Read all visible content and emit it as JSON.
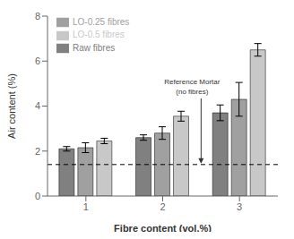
{
  "chart_data": {
    "type": "bar",
    "xlabel": "Fibre content (vol.%)",
    "ylabel": "Air content (%)",
    "categories": [
      1,
      2,
      3
    ],
    "series": [
      {
        "name": "Raw fibres",
        "color": "#808080",
        "values": [
          2.1,
          2.6,
          3.7
        ],
        "errors": [
          0.1,
          0.12,
          0.35
        ]
      },
      {
        "name": "LO-0.25 fibres",
        "color": "#a0a0a0",
        "values": [
          2.15,
          2.8,
          4.3
        ],
        "errors": [
          0.22,
          0.28,
          0.75
        ]
      },
      {
        "name": "LO-0.5 fibres",
        "color": "#c8c8c8",
        "values": [
          2.45,
          3.55,
          6.5
        ],
        "errors": [
          0.12,
          0.22,
          0.28
        ]
      }
    ],
    "reference_line": {
      "value": 1.4,
      "label": "Reference Mortar\n(no fibres)"
    },
    "ylim": [
      0,
      8
    ],
    "yticks": [
      0,
      2,
      4,
      6,
      8
    ],
    "legend": "upper left",
    "grid": false
  }
}
